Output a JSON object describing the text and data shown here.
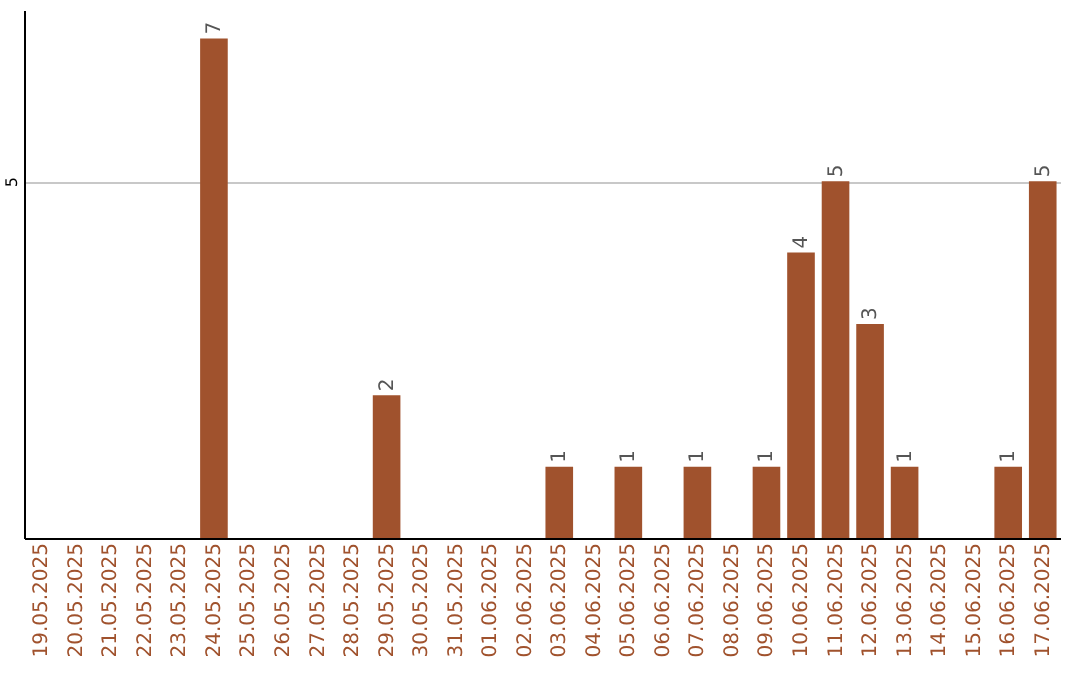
{
  "chart_data": {
    "type": "bar",
    "categories": [
      "19.05.2025",
      "20.05.2025",
      "21.05.2025",
      "22.05.2025",
      "23.05.2025",
      "24.05.2025",
      "25.05.2025",
      "26.05.2025",
      "27.05.2025",
      "28.05.2025",
      "29.05.2025",
      "30.05.2025",
      "31.05.2025",
      "01.06.2025",
      "02.06.2025",
      "03.06.2025",
      "04.06.2025",
      "05.06.2025",
      "06.06.2025",
      "07.06.2025",
      "08.06.2025",
      "09.06.2025",
      "10.06.2025",
      "11.06.2025",
      "12.06.2025",
      "13.06.2025",
      "14.06.2025",
      "15.06.2025",
      "16.06.2025",
      "17.06.2025"
    ],
    "values": [
      0,
      0,
      0,
      0,
      0,
      7,
      0,
      0,
      0,
      0,
      2,
      0,
      0,
      0,
      0,
      1,
      0,
      1,
      0,
      1,
      0,
      1,
      4,
      5,
      3,
      1,
      0,
      0,
      1,
      5
    ],
    "value_labels": [
      null,
      null,
      null,
      null,
      null,
      "7",
      null,
      null,
      null,
      null,
      "2",
      null,
      null,
      null,
      null,
      "1",
      null,
      "1",
      null,
      "1",
      null,
      "1",
      "4",
      "5",
      "3",
      "1",
      null,
      null,
      "1",
      "5"
    ],
    "color": "#a0522d",
    "ylim": [
      0,
      7.4
    ],
    "yticks": [
      5
    ],
    "grid": "y"
  }
}
